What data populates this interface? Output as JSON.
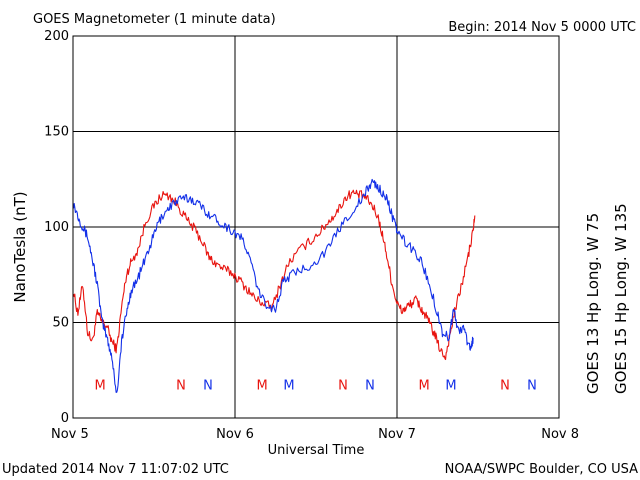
{
  "header": {
    "title": "GOES Magnetometer (1 minute data)",
    "begin": "Begin:  2014 Nov 5 0000 UTC"
  },
  "footer": {
    "updated": "Updated 2014 Nov  7 11:07:02 UTC",
    "credit": "NOAA/SWPC Boulder, CO USA"
  },
  "colors": {
    "red": "#e8140f",
    "blue": "#1330e8"
  },
  "chart_data": {
    "type": "line",
    "title": "GOES Magnetometer (1 minute data)",
    "xlabel": "Universal Time",
    "ylabel": "NanoTesla (nT)",
    "xlim": [
      0,
      3
    ],
    "ylim": [
      0,
      200
    ],
    "x_unit": "days since 2014 Nov 5 0000 UTC",
    "x_ticks": [
      0,
      1,
      2,
      3
    ],
    "x_tick_labels": [
      "Nov 5",
      "Nov 6",
      "Nov 7",
      "Nov 8"
    ],
    "y_ticks": [
      0,
      50,
      100,
      150,
      200
    ],
    "y_tick_labels": [
      "0",
      "50",
      "100",
      "150",
      "200"
    ],
    "grid": true,
    "legend": "right",
    "series": [
      {
        "name": "GOES 13 Hp  Long. W 75",
        "color": "#e8140f",
        "points": [
          [
            0,
            67
          ],
          [
            0.03,
            55
          ],
          [
            0.06,
            70
          ],
          [
            0.09,
            45
          ],
          [
            0.12,
            40
          ],
          [
            0.15,
            55
          ],
          [
            0.18,
            50
          ],
          [
            0.21,
            48
          ],
          [
            0.24,
            40
          ],
          [
            0.27,
            36
          ],
          [
            0.3,
            58
          ],
          [
            0.33,
            75
          ],
          [
            0.36,
            82
          ],
          [
            0.4,
            88
          ],
          [
            0.45,
            103
          ],
          [
            0.5,
            111
          ],
          [
            0.55,
            117
          ],
          [
            0.6,
            116
          ],
          [
            0.65,
            111
          ],
          [
            0.7,
            104
          ],
          [
            0.75,
            99
          ],
          [
            0.8,
            92
          ],
          [
            0.84,
            84
          ],
          [
            0.88,
            81
          ],
          [
            0.93,
            78
          ],
          [
            0.98,
            76
          ],
          [
            1.03,
            72
          ],
          [
            1.08,
            67
          ],
          [
            1.13,
            62
          ],
          [
            1.18,
            60
          ],
          [
            1.23,
            58
          ],
          [
            1.28,
            70
          ],
          [
            1.33,
            81
          ],
          [
            1.4,
            88
          ],
          [
            1.47,
            93
          ],
          [
            1.53,
            98
          ],
          [
            1.58,
            103
          ],
          [
            1.63,
            108
          ],
          [
            1.68,
            115
          ],
          [
            1.72,
            118
          ],
          [
            1.76,
            117
          ],
          [
            1.8,
            116
          ],
          [
            1.84,
            112
          ],
          [
            1.88,
            106
          ],
          [
            1.91,
            96
          ],
          [
            1.94,
            84
          ],
          [
            1.97,
            70
          ],
          [
            2.0,
            60
          ],
          [
            2.03,
            56
          ],
          [
            2.06,
            58
          ],
          [
            2.09,
            60
          ],
          [
            2.12,
            62
          ],
          [
            2.15,
            57
          ],
          [
            2.18,
            53
          ],
          [
            2.21,
            48
          ],
          [
            2.24,
            42
          ],
          [
            2.27,
            35
          ],
          [
            2.3,
            32
          ],
          [
            2.33,
            45
          ],
          [
            2.36,
            57
          ],
          [
            2.4,
            70
          ],
          [
            2.44,
            85
          ],
          [
            2.47,
            98
          ],
          [
            2.48,
            106
          ]
        ]
      },
      {
        "name": "GOES 15 Hp  Long. W 135",
        "color": "#1330e8",
        "points": [
          [
            0,
            113
          ],
          [
            0.03,
            106
          ],
          [
            0.06,
            100
          ],
          [
            0.09,
            95
          ],
          [
            0.12,
            83
          ],
          [
            0.15,
            70
          ],
          [
            0.18,
            50
          ],
          [
            0.21,
            42
          ],
          [
            0.24,
            32
          ],
          [
            0.27,
            12
          ],
          [
            0.3,
            40
          ],
          [
            0.33,
            55
          ],
          [
            0.36,
            67
          ],
          [
            0.4,
            73
          ],
          [
            0.44,
            82
          ],
          [
            0.48,
            91
          ],
          [
            0.52,
            101
          ],
          [
            0.56,
            107
          ],
          [
            0.6,
            111
          ],
          [
            0.65,
            114
          ],
          [
            0.7,
            115
          ],
          [
            0.75,
            114
          ],
          [
            0.8,
            110
          ],
          [
            0.85,
            106
          ],
          [
            0.9,
            103
          ],
          [
            0.95,
            100
          ],
          [
            1.0,
            97
          ],
          [
            1.05,
            93
          ],
          [
            1.1,
            81
          ],
          [
            1.15,
            65
          ],
          [
            1.2,
            59
          ],
          [
            1.25,
            57
          ],
          [
            1.3,
            72
          ],
          [
            1.35,
            75
          ],
          [
            1.42,
            78
          ],
          [
            1.5,
            82
          ],
          [
            1.58,
            89
          ],
          [
            1.65,
            100
          ],
          [
            1.72,
            108
          ],
          [
            1.78,
            114
          ],
          [
            1.82,
            120
          ],
          [
            1.85,
            124
          ],
          [
            1.88,
            121
          ],
          [
            1.92,
            117
          ],
          [
            1.95,
            112
          ],
          [
            1.98,
            103
          ],
          [
            2.0,
            98
          ],
          [
            2.05,
            92
          ],
          [
            2.1,
            88
          ],
          [
            2.15,
            82
          ],
          [
            2.2,
            70
          ],
          [
            2.25,
            55
          ],
          [
            2.28,
            45
          ],
          [
            2.32,
            42
          ],
          [
            2.35,
            57
          ],
          [
            2.38,
            45
          ],
          [
            2.41,
            48
          ],
          [
            2.44,
            38
          ],
          [
            2.46,
            37
          ],
          [
            2.47,
            42
          ]
        ]
      }
    ],
    "annotations": {
      "red_markers": [
        {
          "x": 0.167,
          "label": "M"
        },
        {
          "x": 0.667,
          "label": "N"
        },
        {
          "x": 1.167,
          "label": "M"
        },
        {
          "x": 1.667,
          "label": "N"
        },
        {
          "x": 2.167,
          "label": "M"
        },
        {
          "x": 2.667,
          "label": "N"
        }
      ],
      "blue_markers": [
        {
          "x": 0.833,
          "label": "N"
        },
        {
          "x": 1.333,
          "label": "M"
        },
        {
          "x": 1.833,
          "label": "N"
        },
        {
          "x": 2.333,
          "label": "M"
        },
        {
          "x": 2.833,
          "label": "N"
        }
      ],
      "marker_y": 17
    }
  }
}
